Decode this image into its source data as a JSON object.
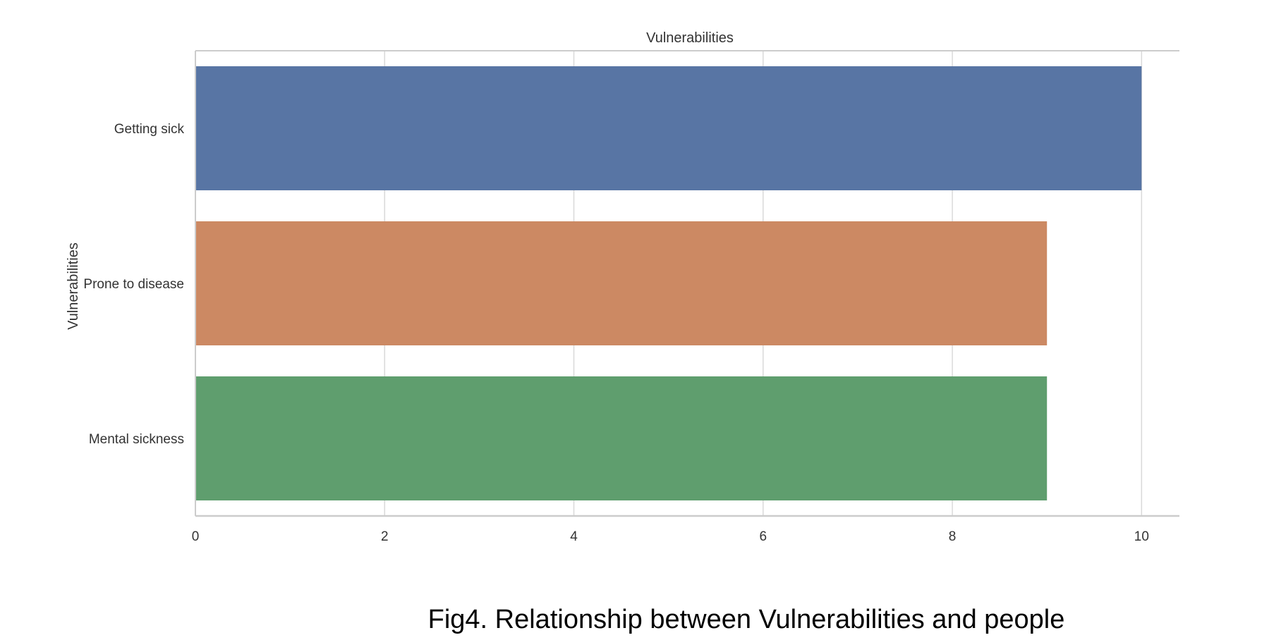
{
  "caption": "Fig4. Relationship between Vulnerabilities and people",
  "chart_data": {
    "type": "bar",
    "orientation": "horizontal",
    "title": "Vulnerabilities",
    "xlabel": "",
    "ylabel": "Vulnerabilities",
    "categories": [
      "Getting sick",
      "Prone to disease",
      "Mental sickness"
    ],
    "values": [
      10,
      9,
      9
    ],
    "colors": [
      "#5875a4",
      "#cc8963",
      "#5f9e6e"
    ],
    "xlim": [
      0,
      10.4
    ],
    "xticks": [
      0,
      2,
      4,
      6,
      8,
      10
    ],
    "grid": true,
    "legend": "none"
  }
}
